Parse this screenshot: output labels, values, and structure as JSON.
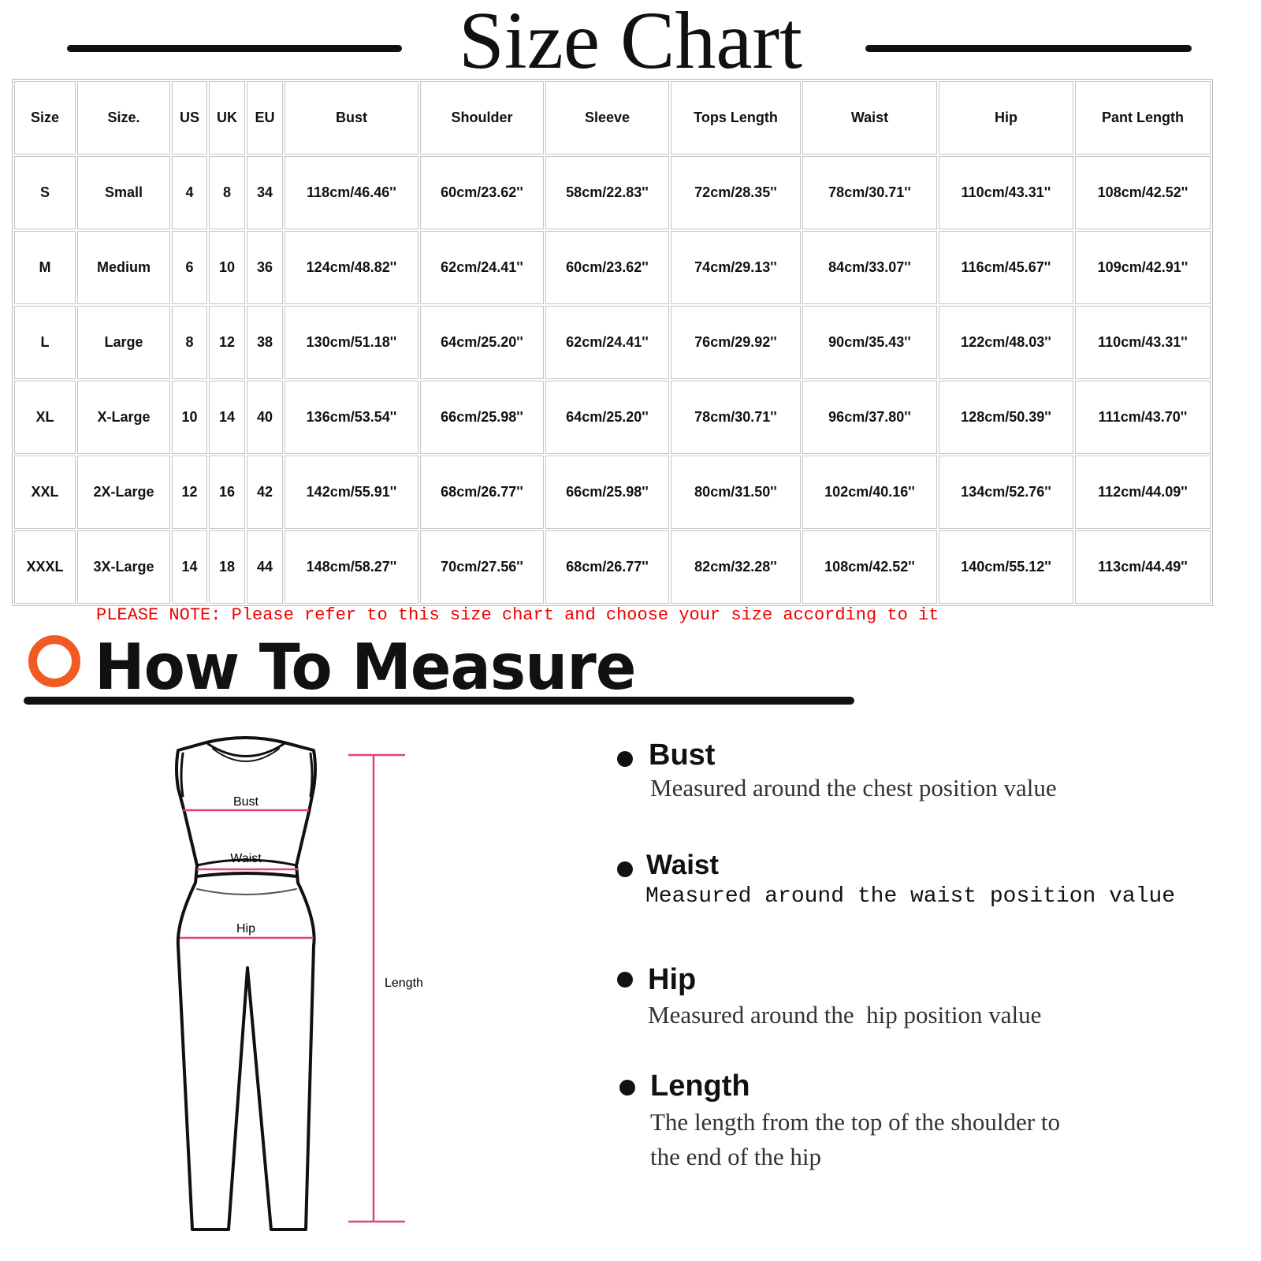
{
  "title": "Size Chart",
  "table": {
    "headers": [
      "Size",
      "Size.",
      "US",
      "UK",
      "EU",
      "Bust",
      "Shoulder",
      "Sleeve",
      "Tops Length",
      "Waist",
      "Hip",
      "Pant Length"
    ],
    "rows": [
      [
        "S",
        "Small",
        "4",
        "8",
        "34",
        "118cm/46.46''",
        "60cm/23.62''",
        "58cm/22.83''",
        "72cm/28.35''",
        "78cm/30.71''",
        "110cm/43.31''",
        "108cm/42.52''"
      ],
      [
        "M",
        "Medium",
        "6",
        "10",
        "36",
        "124cm/48.82''",
        "62cm/24.41''",
        "60cm/23.62''",
        "74cm/29.13''",
        "84cm/33.07''",
        "116cm/45.67''",
        "109cm/42.91''"
      ],
      [
        "L",
        "Large",
        "8",
        "12",
        "38",
        "130cm/51.18''",
        "64cm/25.20''",
        "62cm/24.41''",
        "76cm/29.92''",
        "90cm/35.43''",
        "122cm/48.03''",
        "110cm/43.31''"
      ],
      [
        "XL",
        "X-Large",
        "10",
        "14",
        "40",
        "136cm/53.54''",
        "66cm/25.98''",
        "64cm/25.20''",
        "78cm/30.71''",
        "96cm/37.80''",
        "128cm/50.39''",
        "111cm/43.70''"
      ],
      [
        "XXL",
        "2X-Large",
        "12",
        "16",
        "42",
        "142cm/55.91''",
        "68cm/26.77''",
        "66cm/25.98''",
        "80cm/31.50''",
        "102cm/40.16''",
        "134cm/52.76''",
        "112cm/44.09''"
      ],
      [
        "XXXL",
        "3X-Large",
        "14",
        "18",
        "44",
        "148cm/58.27''",
        "70cm/27.56''",
        "68cm/26.77''",
        "82cm/32.28''",
        "108cm/42.52''",
        "140cm/55.12''",
        "113cm/44.49''"
      ]
    ]
  },
  "note": "PLEASE NOTE: Please refer to this size chart and choose your size according to it",
  "how_to": {
    "title": "How To Measure",
    "accent": "#f15a22",
    "figure_labels": {
      "bust": "Bust",
      "waist": "Waist",
      "hip": "Hip",
      "length": "Length"
    },
    "items": [
      {
        "heading": "Bust",
        "desc": "Measured around the chest position value"
      },
      {
        "heading": "Waist",
        "desc": "Measured around the waist position value"
      },
      {
        "heading": "Hip",
        "desc": "Measured around the  hip position value"
      },
      {
        "heading": "Length",
        "desc": "The length from the top of the shoulder to",
        "desc2": "the end of the hip"
      }
    ]
  }
}
